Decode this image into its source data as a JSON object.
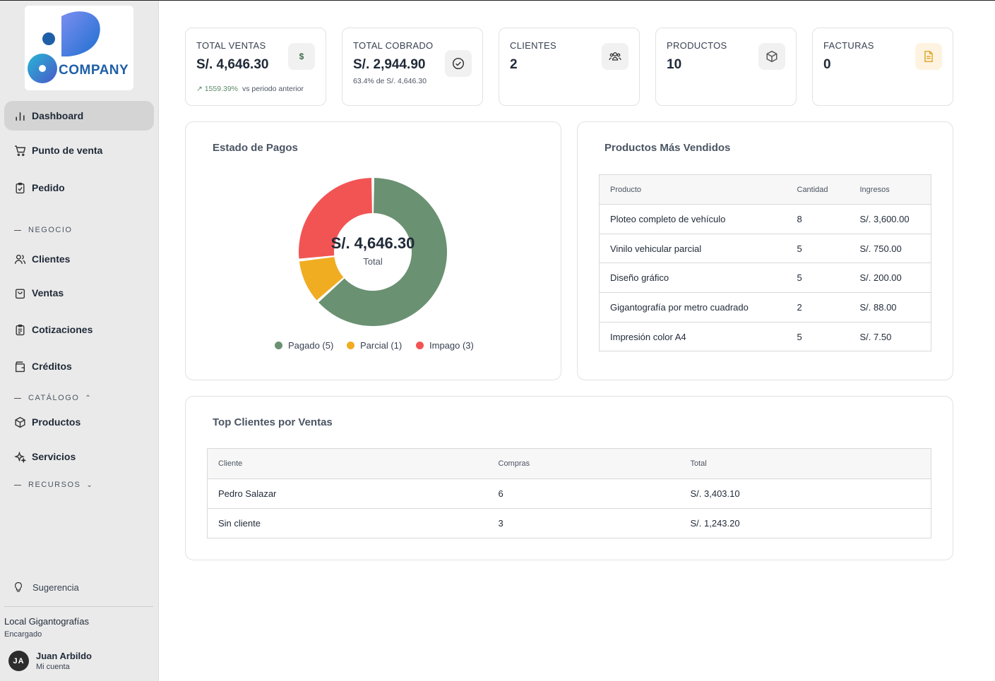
{
  "sidebar": {
    "logo_text": "COMPANY",
    "nav_main": [
      {
        "label": "Dashboard",
        "icon": "bar-chart-icon"
      },
      {
        "label": "Punto de venta",
        "icon": "cart-icon"
      },
      {
        "label": "Pedido",
        "icon": "clipboard-check-icon"
      }
    ],
    "section_negocio": "NEGOCIO",
    "nav_negocio": [
      {
        "label": "Clientes",
        "icon": "users-icon"
      },
      {
        "label": "Ventas",
        "icon": "shopping-bag-icon"
      },
      {
        "label": "Cotizaciones",
        "icon": "clipboard-list-icon"
      },
      {
        "label": "Créditos",
        "icon": "wallet-icon"
      }
    ],
    "section_catalogo": "CATÁLOGO",
    "nav_catalogo": [
      {
        "label": "Productos",
        "icon": "box-icon"
      },
      {
        "label": "Servicios",
        "icon": "sparkles-icon"
      }
    ],
    "section_recursos": "RECURSOS",
    "sugerencia": "Sugerencia",
    "store_name": "Local Gigantografías",
    "store_role": "Encargado",
    "user_initials": "JA",
    "user_name": "Juan Arbildo",
    "user_sub": "Mi cuenta"
  },
  "stats": {
    "ventas": {
      "label": "TOTAL VENTAS",
      "value": "S/. 4,646.30",
      "change": "↗ 1559.39%",
      "change_note": "vs periodo anterior"
    },
    "cobrado": {
      "label": "TOTAL COBRADO",
      "value": "S/. 2,944.90",
      "sub": "63.4% de S/. 4,646.30"
    },
    "clientes": {
      "label": "CLIENTES",
      "value": "2"
    },
    "productos": {
      "label": "PRODUCTOS",
      "value": "10"
    },
    "facturas": {
      "label": "FACTURAS",
      "value": "0"
    }
  },
  "estado_pagos": {
    "title": "Estado de Pagos",
    "center_value": "S/. 4,646.30",
    "center_label": "Total"
  },
  "chart_data": {
    "type": "pie",
    "title": "Estado de Pagos",
    "slices": [
      {
        "label": "Pagado (5)",
        "value": 2944.9,
        "color": "#6a9172"
      },
      {
        "label": "Parcial (1)",
        "value": 458.2,
        "color": "#f0ad22"
      },
      {
        "label": "Impago (3)",
        "value": 1243.2,
        "color": "#f25454"
      }
    ],
    "center_value": "S/. 4,646.30",
    "center_label": "Total",
    "legend_position": "bottom"
  },
  "productos_vendidos": {
    "title": "Productos Más Vendidos",
    "columns": [
      "Producto",
      "Cantidad",
      "Ingresos"
    ],
    "rows": [
      [
        "Ploteo completo de vehículo",
        "8",
        "S/. 3,600.00"
      ],
      [
        "Vinilo vehicular parcial",
        "5",
        "S/. 750.00"
      ],
      [
        "Diseño gráfico",
        "5",
        "S/. 200.00"
      ],
      [
        "Gigantografía por metro cuadrado",
        "2",
        "S/. 88.00"
      ],
      [
        "Impresión color A4",
        "5",
        "S/. 7.50"
      ]
    ]
  },
  "top_clientes": {
    "title": "Top Clientes por Ventas",
    "columns": [
      "Cliente",
      "Compras",
      "Total"
    ],
    "rows": [
      [
        "Pedro Salazar",
        "6",
        "S/. 3,403.10"
      ],
      [
        "Sin cliente",
        "3",
        "S/. 1,243.20"
      ]
    ]
  },
  "colors": {
    "accent_green": "#6a9172",
    "accent_yellow": "#f0ad22",
    "accent_red": "#f25454",
    "sidebar_bg": "#eaeaea"
  }
}
